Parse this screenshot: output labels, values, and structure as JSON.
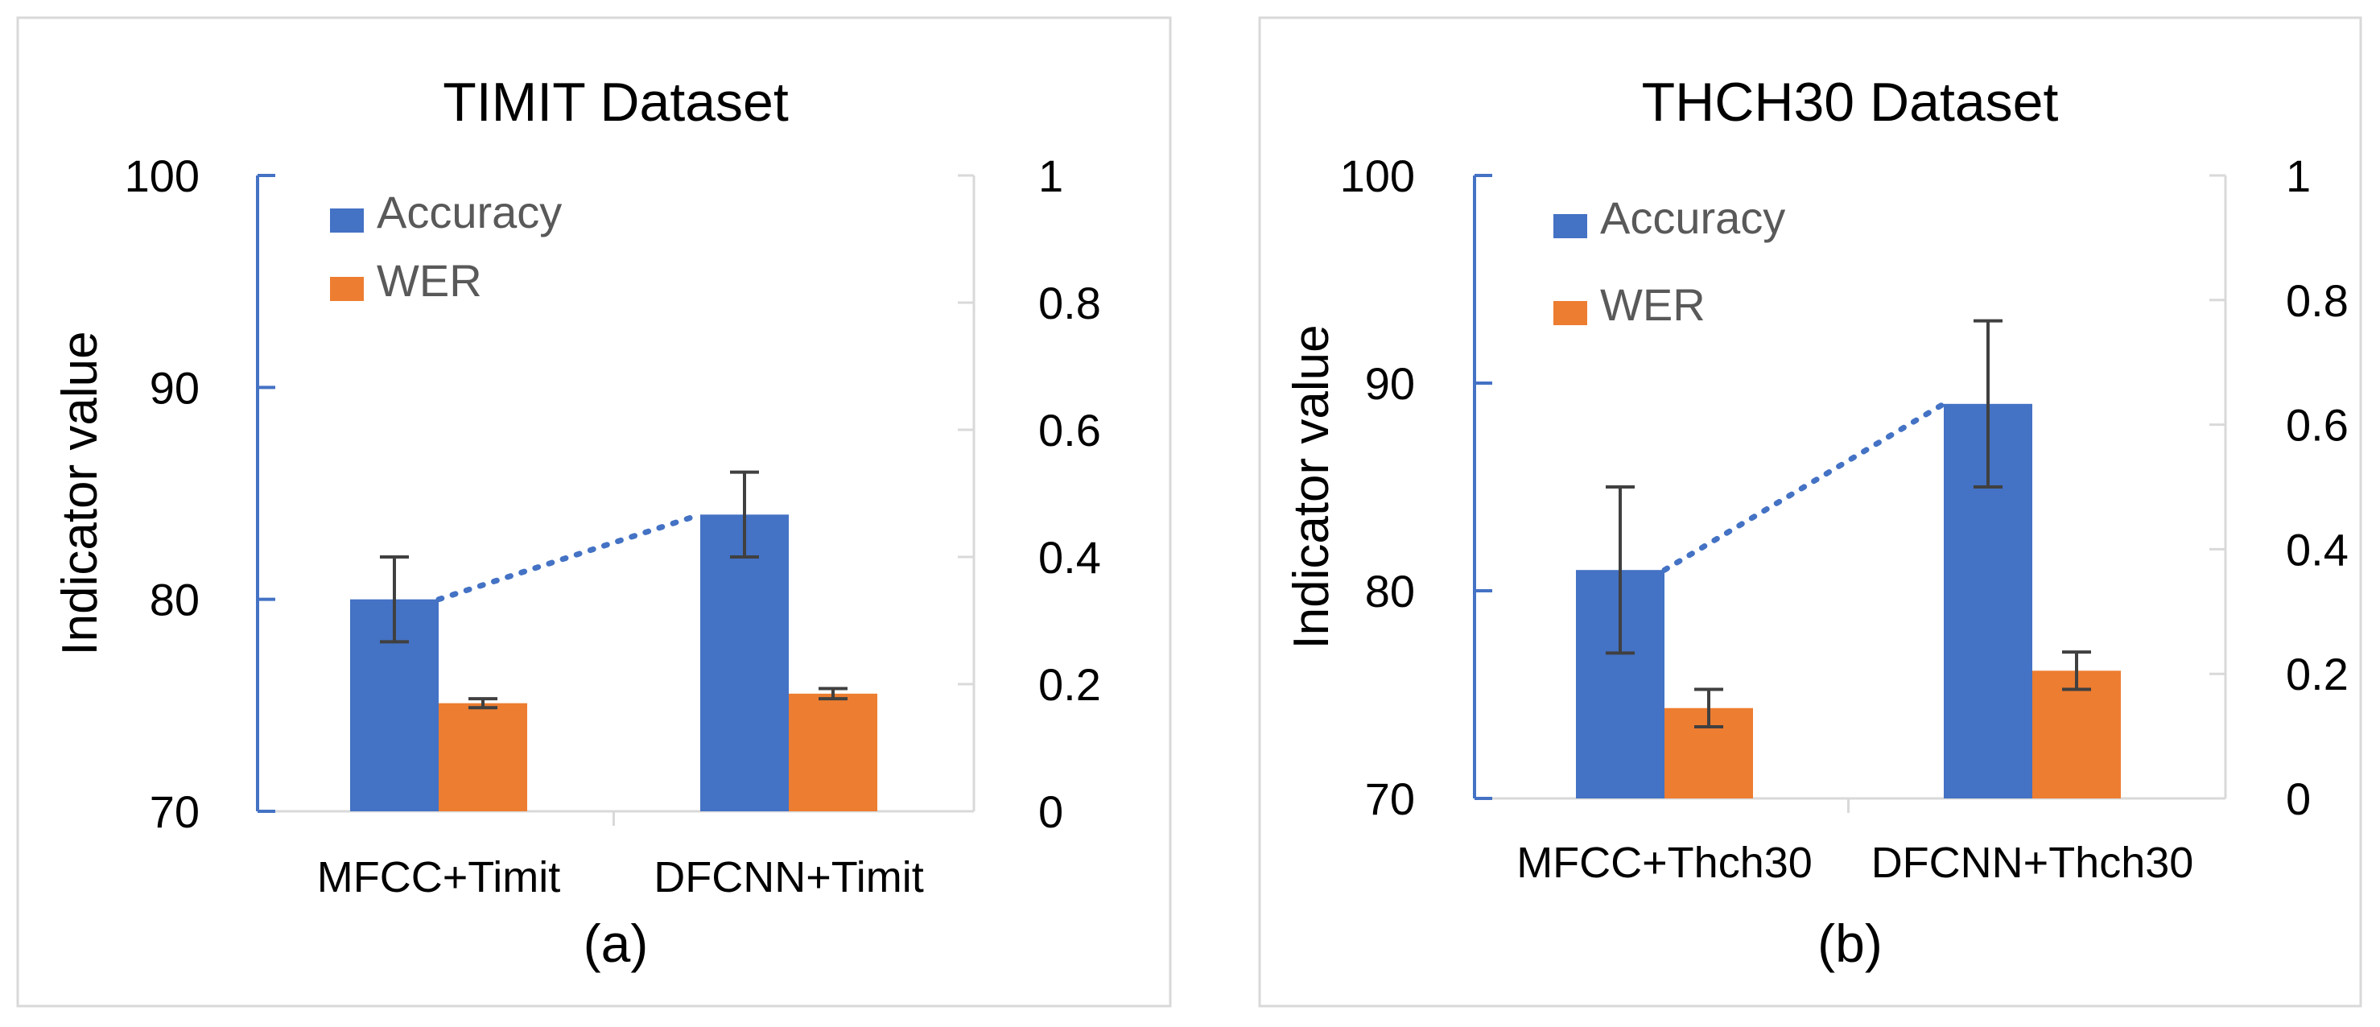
{
  "chart_data": [
    {
      "type": "bar",
      "title": "TIMIT Dataset",
      "caption": "(a)",
      "categories": [
        "MFCC+Timit",
        "DFCNN+Timit"
      ],
      "ylabel": "Indicator value",
      "ylim": [
        70,
        100
      ],
      "yticks": [
        "70",
        "80",
        "90",
        "100"
      ],
      "y2lim": [
        0,
        1
      ],
      "y2ticks": [
        "0",
        "0.2",
        "0.4",
        "0.6",
        "0.8",
        "1"
      ],
      "legend_position": "top-left",
      "series": [
        {
          "name": "Accuracy",
          "axis": "primary",
          "color": "#4472C4",
          "values": [
            80,
            84
          ],
          "errors": [
            2,
            2
          ]
        },
        {
          "name": "WER",
          "axis": "secondary",
          "color": "#ED7D31",
          "values": [
            0.17,
            0.185
          ],
          "errors": [
            0.007,
            0.008
          ]
        }
      ],
      "trendline": {
        "series": "Accuracy",
        "style": "dotted",
        "color": "#4472C4"
      }
    },
    {
      "type": "bar",
      "title": "THCH30 Dataset",
      "caption": "(b)",
      "categories": [
        "MFCC+Thch30",
        "DFCNN+Thch30"
      ],
      "ylabel": "Indicator value",
      "ylim": [
        70,
        100
      ],
      "yticks": [
        "70",
        "80",
        "90",
        "100"
      ],
      "y2lim": [
        0,
        1
      ],
      "y2ticks": [
        "0",
        "0.2",
        "0.4",
        "0.6",
        "0.8",
        "1"
      ],
      "legend_position": "top-left",
      "series": [
        {
          "name": "Accuracy",
          "axis": "primary",
          "color": "#4472C4",
          "values": [
            81,
            89
          ],
          "errors": [
            4,
            4
          ]
        },
        {
          "name": "WER",
          "axis": "secondary",
          "color": "#ED7D31",
          "values": [
            0.145,
            0.205
          ],
          "errors": [
            0.03,
            0.03
          ]
        }
      ],
      "trendline": {
        "series": "Accuracy",
        "style": "dotted",
        "color": "#4472C4"
      }
    }
  ]
}
